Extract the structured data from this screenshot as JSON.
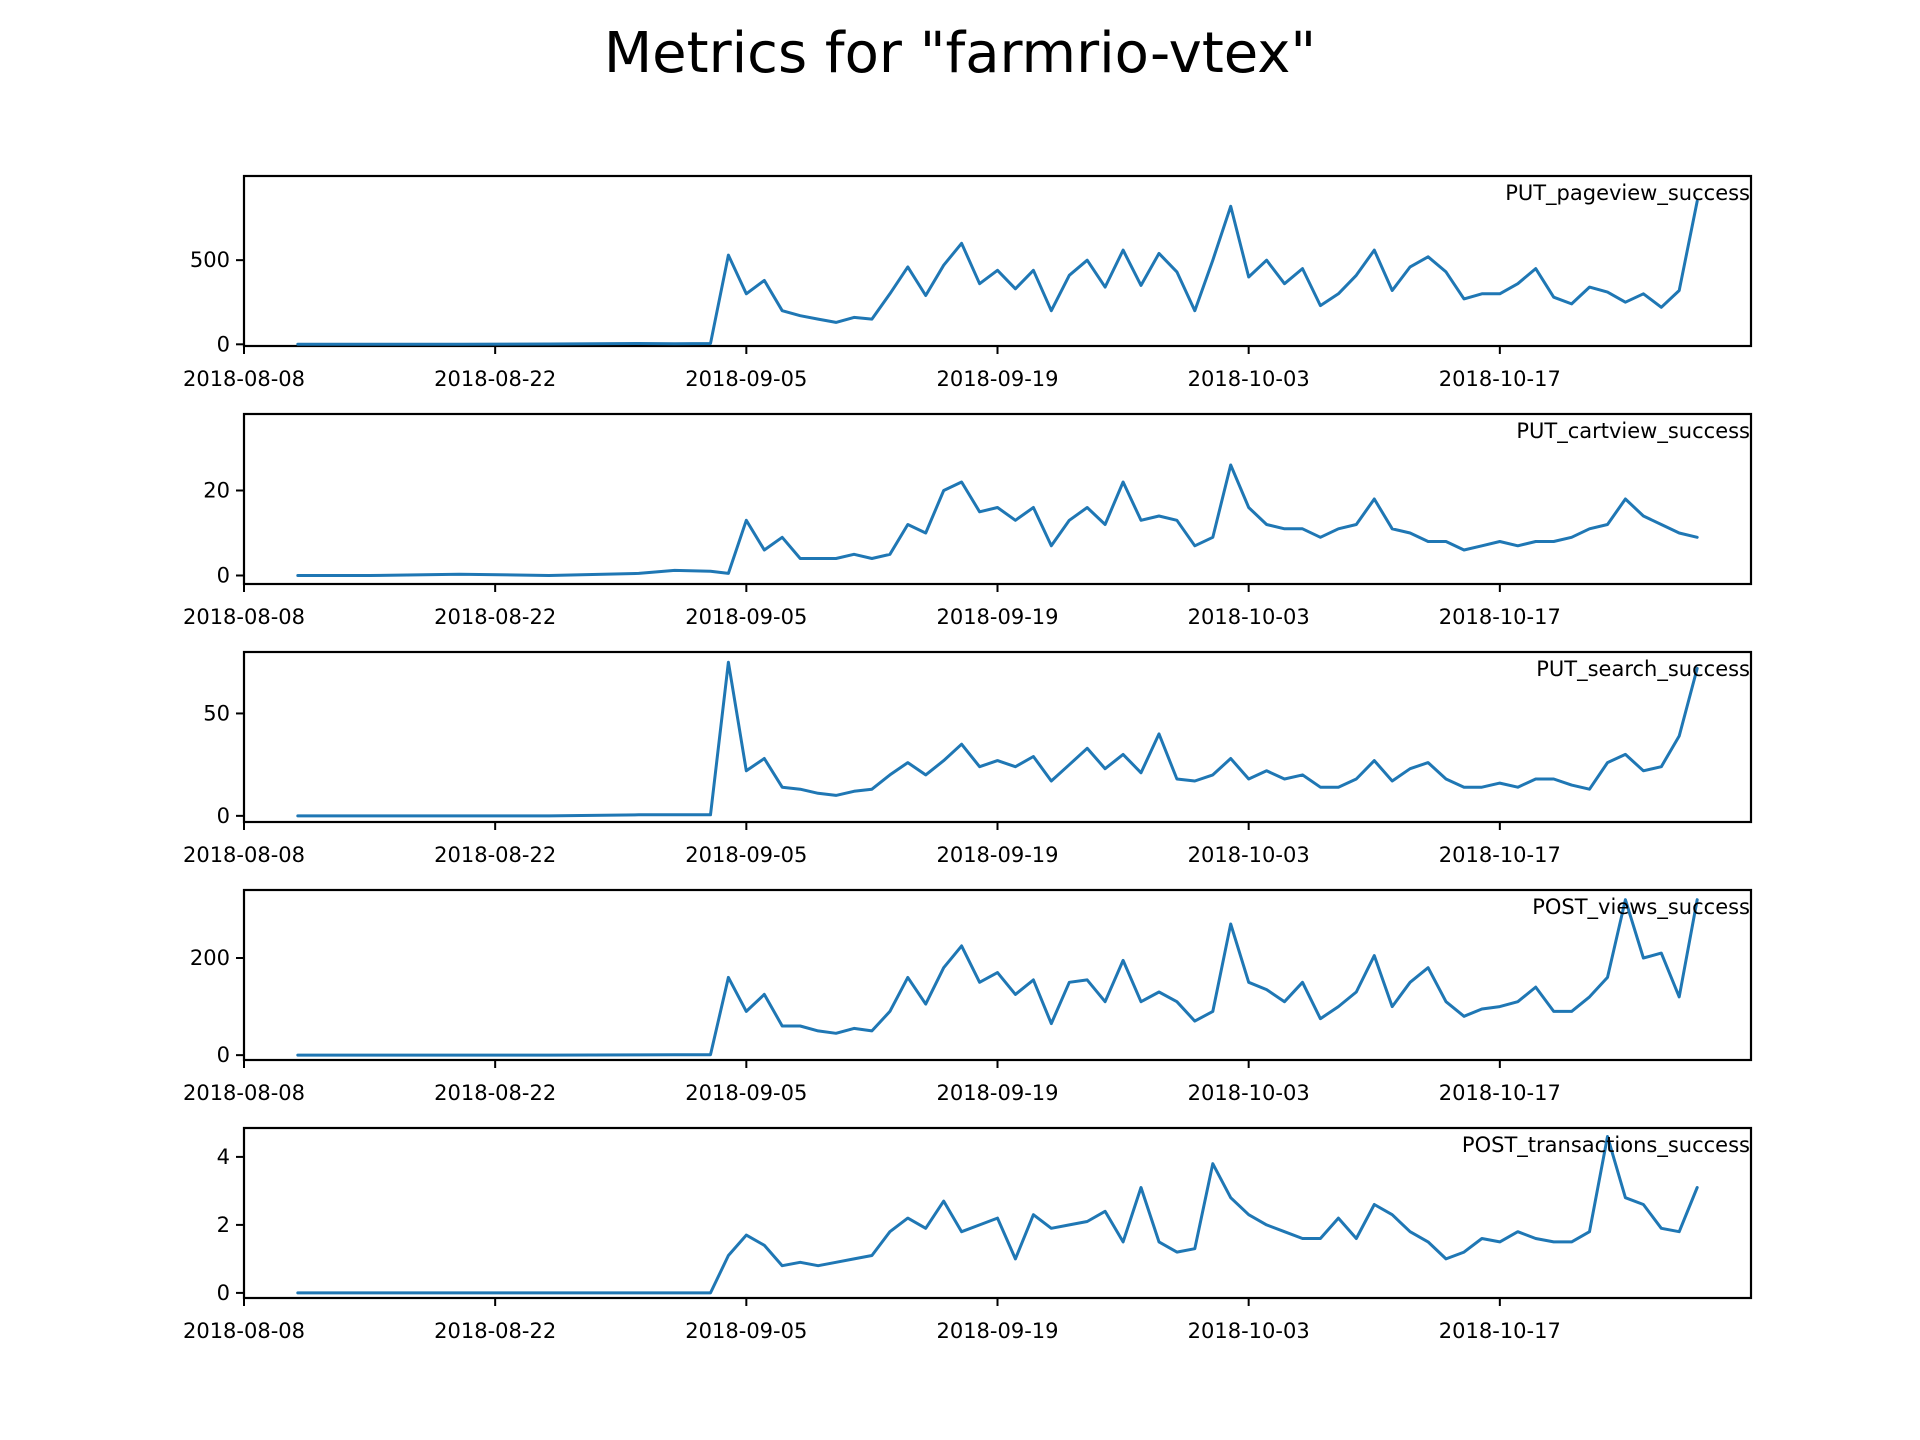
{
  "figure": {
    "title": "Metrics for \"farmrio-vtex\"",
    "line_color": "#1f77b4"
  },
  "chart_data": [
    {
      "type": "line",
      "label": "PUT_pageview_success",
      "xlim": [
        "2018-08-08",
        "2018-10-31"
      ],
      "ylim": [
        -10,
        1000
      ],
      "yticks": [
        0,
        500
      ],
      "xticks": [
        "2018-08-08",
        "2018-08-22",
        "2018-09-05",
        "2018-09-19",
        "2018-10-03",
        "2018-10-17"
      ],
      "grid": false,
      "x": [
        "2018-08-11",
        "2018-08-15",
        "2018-08-20",
        "2018-08-25",
        "2018-08-30",
        "2018-09-01",
        "2018-09-03",
        "2018-09-04",
        "2018-09-05",
        "2018-09-06",
        "2018-09-07",
        "2018-09-08",
        "2018-09-09",
        "2018-09-10",
        "2018-09-11",
        "2018-09-12",
        "2018-09-13",
        "2018-09-14",
        "2018-09-15",
        "2018-09-16",
        "2018-09-17",
        "2018-09-18",
        "2018-09-19",
        "2018-09-20",
        "2018-09-21",
        "2018-09-22",
        "2018-09-23",
        "2018-09-24",
        "2018-09-25",
        "2018-09-26",
        "2018-09-27",
        "2018-09-28",
        "2018-09-29",
        "2018-09-30",
        "2018-10-01",
        "2018-10-02",
        "2018-10-03",
        "2018-10-04",
        "2018-10-05",
        "2018-10-06",
        "2018-10-07",
        "2018-10-08",
        "2018-10-09",
        "2018-10-10",
        "2018-10-11",
        "2018-10-12",
        "2018-10-13",
        "2018-10-14",
        "2018-10-15",
        "2018-10-16",
        "2018-10-17",
        "2018-10-18",
        "2018-10-19",
        "2018-10-20",
        "2018-10-21",
        "2018-10-22",
        "2018-10-23",
        "2018-10-24",
        "2018-10-25",
        "2018-10-26",
        "2018-10-27",
        "2018-10-28"
      ],
      "y": [
        0,
        0,
        0,
        2,
        5,
        3,
        5,
        530,
        300,
        380,
        200,
        170,
        150,
        130,
        160,
        150,
        300,
        460,
        290,
        470,
        600,
        360,
        440,
        330,
        440,
        200,
        410,
        500,
        340,
        560,
        350,
        540,
        430,
        200,
        500,
        820,
        400,
        500,
        360,
        450,
        230,
        300,
        410,
        560,
        320,
        460,
        520,
        430,
        270,
        300,
        300,
        360,
        450,
        280,
        240,
        340,
        310,
        250,
        300,
        220,
        320,
        850
      ]
    },
    {
      "type": "line",
      "label": "PUT_cartview_success",
      "xlim": [
        "2018-08-08",
        "2018-10-31"
      ],
      "ylim": [
        -2,
        38
      ],
      "yticks": [
        0,
        20
      ],
      "xticks": [
        "2018-08-08",
        "2018-08-22",
        "2018-09-05",
        "2018-09-19",
        "2018-10-03",
        "2018-10-17"
      ],
      "grid": false,
      "x": [
        "2018-08-11",
        "2018-08-15",
        "2018-08-20",
        "2018-08-25",
        "2018-08-30",
        "2018-09-01",
        "2018-09-03",
        "2018-09-04",
        "2018-09-05",
        "2018-09-06",
        "2018-09-07",
        "2018-09-08",
        "2018-09-09",
        "2018-09-10",
        "2018-09-11",
        "2018-09-12",
        "2018-09-13",
        "2018-09-14",
        "2018-09-15",
        "2018-09-16",
        "2018-09-17",
        "2018-09-18",
        "2018-09-19",
        "2018-09-20",
        "2018-09-21",
        "2018-09-22",
        "2018-09-23",
        "2018-09-24",
        "2018-09-25",
        "2018-09-26",
        "2018-09-27",
        "2018-09-28",
        "2018-09-29",
        "2018-09-30",
        "2018-10-01",
        "2018-10-02",
        "2018-10-03",
        "2018-10-04",
        "2018-10-05",
        "2018-10-06",
        "2018-10-07",
        "2018-10-08",
        "2018-10-09",
        "2018-10-10",
        "2018-10-11",
        "2018-10-12",
        "2018-10-13",
        "2018-10-14",
        "2018-10-15",
        "2018-10-16",
        "2018-10-17",
        "2018-10-18",
        "2018-10-19",
        "2018-10-20",
        "2018-10-21",
        "2018-10-22",
        "2018-10-23",
        "2018-10-24",
        "2018-10-25",
        "2018-10-26",
        "2018-10-27",
        "2018-10-28"
      ],
      "y": [
        0,
        0,
        0.3,
        0,
        0.5,
        1.2,
        1,
        0.5,
        13,
        6,
        9,
        4,
        4,
        4,
        5,
        4,
        5,
        12,
        10,
        20,
        22,
        15,
        16,
        13,
        16,
        7,
        13,
        16,
        12,
        22,
        13,
        14,
        13,
        7,
        9,
        26,
        16,
        12,
        11,
        11,
        9,
        11,
        12,
        18,
        11,
        10,
        8,
        8,
        6,
        7,
        8,
        7,
        8,
        8,
        9,
        11,
        12,
        18,
        14,
        12,
        10,
        9
      ]
    },
    {
      "type": "line",
      "label": "PUT_search_success",
      "xlim": [
        "2018-08-08",
        "2018-10-31"
      ],
      "ylim": [
        -3,
        80
      ],
      "yticks": [
        0,
        50
      ],
      "xticks": [
        "2018-08-08",
        "2018-08-22",
        "2018-09-05",
        "2018-09-19",
        "2018-10-03",
        "2018-10-17"
      ],
      "grid": false,
      "x": [
        "2018-08-11",
        "2018-08-15",
        "2018-08-20",
        "2018-08-25",
        "2018-08-30",
        "2018-09-01",
        "2018-09-03",
        "2018-09-04",
        "2018-09-05",
        "2018-09-06",
        "2018-09-07",
        "2018-09-08",
        "2018-09-09",
        "2018-09-10",
        "2018-09-11",
        "2018-09-12",
        "2018-09-13",
        "2018-09-14",
        "2018-09-15",
        "2018-09-16",
        "2018-09-17",
        "2018-09-18",
        "2018-09-19",
        "2018-09-20",
        "2018-09-21",
        "2018-09-22",
        "2018-09-23",
        "2018-09-24",
        "2018-09-25",
        "2018-09-26",
        "2018-09-27",
        "2018-09-28",
        "2018-09-29",
        "2018-09-30",
        "2018-10-01",
        "2018-10-02",
        "2018-10-03",
        "2018-10-04",
        "2018-10-05",
        "2018-10-06",
        "2018-10-07",
        "2018-10-08",
        "2018-10-09",
        "2018-10-10",
        "2018-10-11",
        "2018-10-12",
        "2018-10-13",
        "2018-10-14",
        "2018-10-15",
        "2018-10-16",
        "2018-10-17",
        "2018-10-18",
        "2018-10-19",
        "2018-10-20",
        "2018-10-21",
        "2018-10-22",
        "2018-10-23",
        "2018-10-24",
        "2018-10-25",
        "2018-10-26",
        "2018-10-27",
        "2018-10-28"
      ],
      "y": [
        0,
        0,
        0,
        0,
        0.5,
        0.5,
        0.5,
        75,
        22,
        28,
        14,
        13,
        11,
        10,
        12,
        13,
        20,
        26,
        20,
        27,
        35,
        24,
        27,
        24,
        29,
        17,
        25,
        33,
        23,
        30,
        21,
        40,
        18,
        17,
        20,
        28,
        18,
        22,
        18,
        20,
        14,
        14,
        18,
        27,
        17,
        23,
        26,
        18,
        14,
        14,
        16,
        14,
        18,
        18,
        15,
        13,
        26,
        30,
        22,
        24,
        39,
        72
      ]
    },
    {
      "type": "line",
      "label": "POST_views_success",
      "xlim": [
        "2018-08-08",
        "2018-10-31"
      ],
      "ylim": [
        -10,
        340
      ],
      "yticks": [
        0,
        200
      ],
      "xticks": [
        "2018-08-08",
        "2018-08-22",
        "2018-09-05",
        "2018-09-19",
        "2018-10-03",
        "2018-10-17"
      ],
      "grid": false,
      "x": [
        "2018-08-11",
        "2018-08-15",
        "2018-08-20",
        "2018-08-25",
        "2018-08-30",
        "2018-09-01",
        "2018-09-03",
        "2018-09-04",
        "2018-09-05",
        "2018-09-06",
        "2018-09-07",
        "2018-09-08",
        "2018-09-09",
        "2018-09-10",
        "2018-09-11",
        "2018-09-12",
        "2018-09-13",
        "2018-09-14",
        "2018-09-15",
        "2018-09-16",
        "2018-09-17",
        "2018-09-18",
        "2018-09-19",
        "2018-09-20",
        "2018-09-21",
        "2018-09-22",
        "2018-09-23",
        "2018-09-24",
        "2018-09-25",
        "2018-09-26",
        "2018-09-27",
        "2018-09-28",
        "2018-09-29",
        "2018-09-30",
        "2018-10-01",
        "2018-10-02",
        "2018-10-03",
        "2018-10-04",
        "2018-10-05",
        "2018-10-06",
        "2018-10-07",
        "2018-10-08",
        "2018-10-09",
        "2018-10-10",
        "2018-10-11",
        "2018-10-12",
        "2018-10-13",
        "2018-10-14",
        "2018-10-15",
        "2018-10-16",
        "2018-10-17",
        "2018-10-18",
        "2018-10-19",
        "2018-10-20",
        "2018-10-21",
        "2018-10-22",
        "2018-10-23",
        "2018-10-24",
        "2018-10-25",
        "2018-10-26",
        "2018-10-27",
        "2018-10-28"
      ],
      "y": [
        0,
        0,
        0,
        0,
        0.5,
        1,
        1,
        160,
        90,
        125,
        60,
        60,
        50,
        45,
        55,
        50,
        90,
        160,
        105,
        180,
        225,
        150,
        170,
        125,
        155,
        65,
        150,
        155,
        110,
        195,
        110,
        130,
        110,
        70,
        90,
        270,
        150,
        135,
        110,
        150,
        75,
        100,
        130,
        205,
        100,
        150,
        180,
        110,
        80,
        95,
        100,
        110,
        140,
        90,
        90,
        120,
        160,
        320,
        200,
        210,
        120,
        320
      ]
    },
    {
      "type": "line",
      "label": "POST_transactions_success",
      "xlim": [
        "2018-08-08",
        "2018-10-31"
      ],
      "ylim": [
        -0.15,
        4.85
      ],
      "yticks": [
        0,
        2,
        4
      ],
      "xticks": [
        "2018-08-08",
        "2018-08-22",
        "2018-09-05",
        "2018-09-19",
        "2018-10-03",
        "2018-10-17"
      ],
      "grid": false,
      "x": [
        "2018-08-11",
        "2018-08-15",
        "2018-08-20",
        "2018-08-25",
        "2018-08-30",
        "2018-09-01",
        "2018-09-03",
        "2018-09-04",
        "2018-09-05",
        "2018-09-06",
        "2018-09-07",
        "2018-09-08",
        "2018-09-09",
        "2018-09-10",
        "2018-09-11",
        "2018-09-12",
        "2018-09-13",
        "2018-09-14",
        "2018-09-15",
        "2018-09-16",
        "2018-09-17",
        "2018-09-18",
        "2018-09-19",
        "2018-09-20",
        "2018-09-21",
        "2018-09-22",
        "2018-09-23",
        "2018-09-24",
        "2018-09-25",
        "2018-09-26",
        "2018-09-27",
        "2018-09-28",
        "2018-09-29",
        "2018-09-30",
        "2018-10-01",
        "2018-10-02",
        "2018-10-03",
        "2018-10-04",
        "2018-10-05",
        "2018-10-06",
        "2018-10-07",
        "2018-10-08",
        "2018-10-09",
        "2018-10-10",
        "2018-10-11",
        "2018-10-12",
        "2018-10-13",
        "2018-10-14",
        "2018-10-15",
        "2018-10-16",
        "2018-10-17",
        "2018-10-18",
        "2018-10-19",
        "2018-10-20",
        "2018-10-21",
        "2018-10-22",
        "2018-10-23",
        "2018-10-24",
        "2018-10-25",
        "2018-10-26",
        "2018-10-27",
        "2018-10-28"
      ],
      "y": [
        0,
        0,
        0,
        0,
        0,
        0,
        0,
        1.1,
        1.7,
        1.4,
        0.8,
        0.9,
        0.8,
        0.9,
        1.0,
        1.1,
        1.8,
        2.2,
        1.9,
        2.7,
        1.8,
        2.0,
        2.2,
        1.0,
        2.3,
        1.9,
        2.0,
        2.1,
        2.4,
        1.5,
        3.1,
        1.5,
        1.2,
        1.3,
        3.8,
        2.8,
        2.3,
        2.0,
        1.8,
        1.6,
        1.6,
        2.2,
        1.6,
        2.6,
        2.3,
        1.8,
        1.5,
        1.0,
        1.2,
        1.6,
        1.5,
        1.8,
        1.6,
        1.5,
        1.5,
        1.8,
        4.6,
        2.8,
        2.6,
        1.9,
        1.8,
        3.1
      ]
    }
  ]
}
